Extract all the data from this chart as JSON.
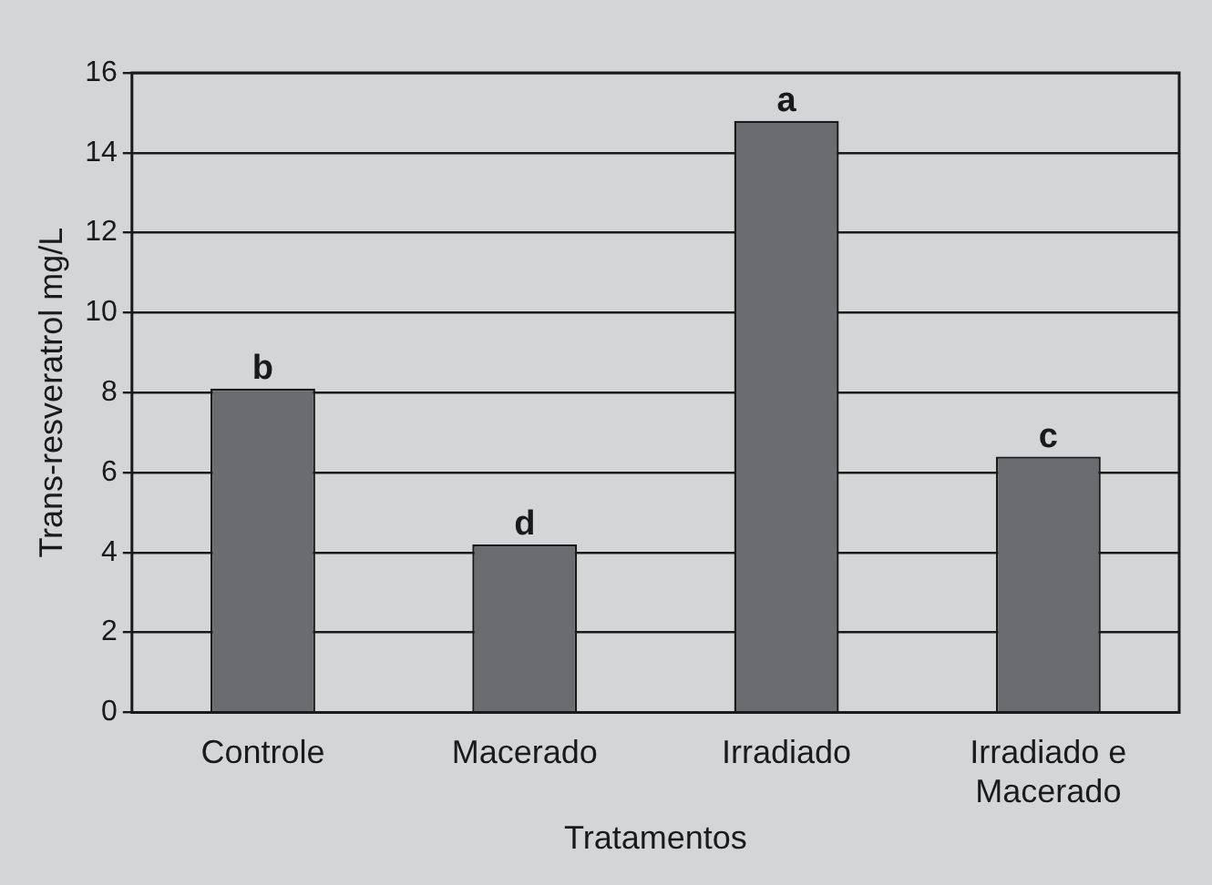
{
  "chart_data": {
    "type": "bar",
    "xlabel": "Tratamentos",
    "ylabel": "Trans-resveratrol mg/L",
    "categories": [
      "Controle",
      "Macerado",
      "Irradiado",
      "Irradiado e Macerado"
    ],
    "values": [
      8.1,
      4.2,
      14.8,
      6.4
    ],
    "color": "#6b6c70",
    "ylim": [
      0,
      16
    ],
    "yticks": [
      0,
      2,
      4,
      6,
      8,
      10,
      12,
      14,
      16
    ],
    "grid": "y",
    "legend": false,
    "annotations": [
      {
        "text": "b",
        "x": "Controle",
        "y": 8.1
      },
      {
        "text": "d",
        "x": "Macerado",
        "y": 4.2
      },
      {
        "text": "a",
        "x": "Irradiado",
        "y": 14.8
      },
      {
        "text": "c",
        "x": "Irradiado e Macerado",
        "y": 6.4
      }
    ]
  }
}
